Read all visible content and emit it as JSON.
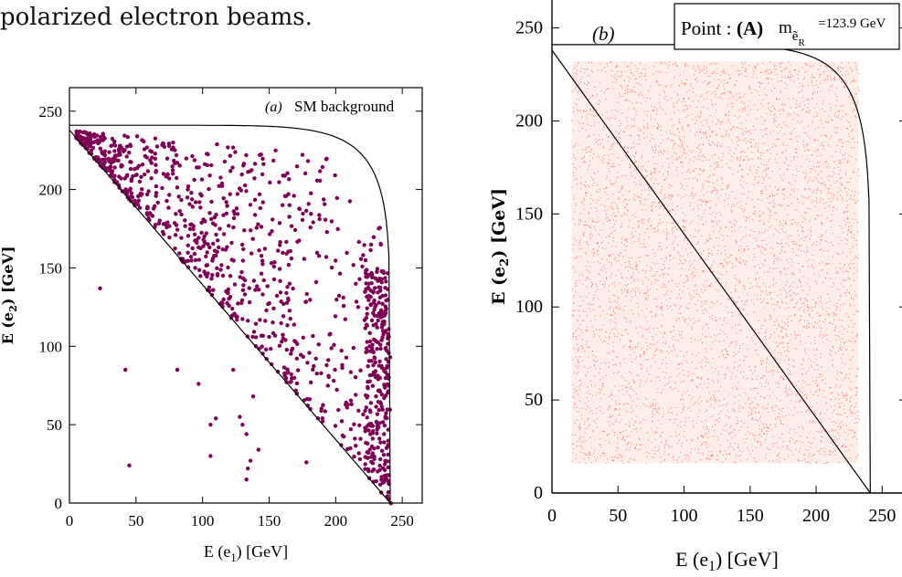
{
  "page": {
    "intro_text": "polarized electron beams."
  },
  "chart_data": [
    {
      "type": "scatter",
      "panel_label": "(a)",
      "title": "SM background",
      "xlabel": {
        "main": "E (e",
        "sub": "1",
        "tail": ") [GeV]"
      },
      "ylabel": {
        "main": "E (e",
        "sub": "2",
        "tail": ") [GeV]"
      },
      "xlim": [
        0,
        265
      ],
      "ylim": [
        0,
        265
      ],
      "xticks": [
        "0",
        "50",
        "100",
        "150",
        "200",
        "250"
      ],
      "yticks": [
        "0",
        "50",
        "100",
        "150",
        "200",
        "250"
      ],
      "grid": false,
      "marker_color": "#800055",
      "lower_boundary": [
        [
          0,
          238
        ],
        [
          241,
          0
        ]
      ],
      "upper_boundary_note": "curved kinematic limit from about (0,241) to (241,0)",
      "outliers": [
        [
          23,
          137
        ],
        [
          42,
          85
        ],
        [
          81,
          85
        ],
        [
          45,
          24
        ],
        [
          97,
          76
        ],
        [
          106,
          50
        ],
        [
          110,
          54
        ],
        [
          106,
          30
        ],
        [
          123,
          85
        ],
        [
          128,
          55
        ],
        [
          130,
          50
        ],
        [
          133,
          44
        ],
        [
          134,
          22
        ],
        [
          136,
          27
        ],
        [
          138,
          68
        ],
        [
          133,
          15
        ],
        [
          142,
          34
        ],
        [
          178,
          26
        ]
      ],
      "dense_region": "band of points between the lower and upper boundaries, denser near x=230-240"
    },
    {
      "type": "scatter",
      "panel_label": "(b)",
      "legend": {
        "point_label": "Point :",
        "point_id": "(A)",
        "mass_symbol": "m",
        "mass_value": "=123.9 GeV"
      },
      "xlabel": {
        "main": "E (e",
        "sub": "1",
        "tail": ") [GeV]"
      },
      "ylabel": {
        "main": "E (e",
        "sub": "2",
        "tail": ") [GeV]"
      },
      "xlim": [
        0,
        265
      ],
      "ylim": [
        0,
        265
      ],
      "xticks": [
        "0",
        "50",
        "100",
        "150",
        "200",
        "250"
      ],
      "yticks": [
        "0",
        "50",
        "100",
        "150",
        "200",
        "250"
      ],
      "grid": false,
      "marker_color": "#e8604a",
      "point_region": {
        "x": [
          15,
          232
        ],
        "y": [
          16,
          232
        ]
      },
      "lower_boundary": [
        [
          0,
          238
        ],
        [
          241,
          0
        ]
      ],
      "upper_boundary_note": "curved kinematic limit from about (0,241) to (241,0)"
    }
  ],
  "colors": {
    "accent_a": "#800055",
    "accent_b": "#e8604a",
    "curve": "#000000"
  }
}
